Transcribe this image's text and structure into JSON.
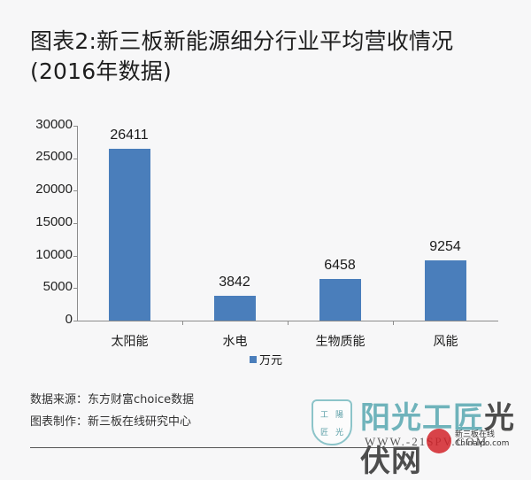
{
  "title": {
    "line1": "图表2:新三板新能源细分行业平均营收情况",
    "line2": "(2016年数据)"
  },
  "chart_data": {
    "type": "bar",
    "title": "图表2:新三板新能源细分行业平均营收情况(2016年数据)",
    "categories": [
      "太阳能",
      "水电",
      "生物质能",
      "风能"
    ],
    "series": [
      {
        "name": "万元",
        "values": [
          26411,
          3842,
          6458,
          9254
        ],
        "color": "#4a7ebb"
      }
    ],
    "values": [
      26411,
      3842,
      6458,
      9254
    ],
    "value_labels": [
      "26411",
      "3842",
      "6458",
      "9254"
    ],
    "xlabel": "",
    "ylabel": "",
    "ylim": [
      0,
      30000
    ],
    "yticks": [
      "0",
      "5000",
      "10000",
      "15000",
      "20000",
      "25000",
      "30000"
    ],
    "grid": false,
    "legend": {
      "position": "bottom",
      "entries": [
        "万元"
      ]
    }
  },
  "footnotes": {
    "source": "数据来源：东方财富choice数据",
    "maker": "图表制作：新三板在线研究中心"
  },
  "watermark": {
    "logo_chars": [
      "工",
      "陽",
      "匠",
      "光"
    ],
    "site_name_part1": "阳光工匠",
    "site_name_part2": "光伏网",
    "url": "WWW.-21SPV.COM",
    "badge_text_line1": "新三板在线",
    "badge_text_line2": "Chinaipo.com"
  }
}
